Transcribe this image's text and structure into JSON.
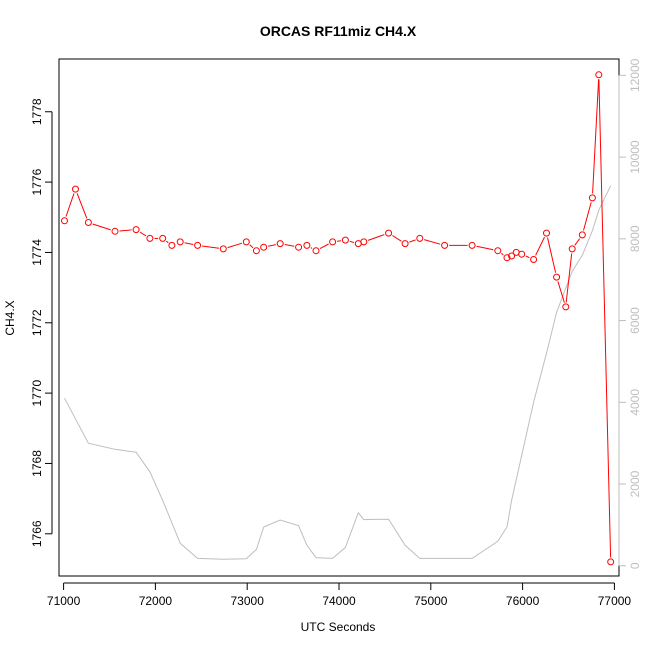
{
  "chart_data": {
    "type": "line",
    "title": "ORCAS RF11miz CH4.X",
    "xlabel": "UTC Seconds",
    "ylabel": "CH4.X",
    "xlim": [
      70950,
      77050
    ],
    "ylim": [
      1764.8,
      1779.5
    ],
    "y2lim": [
      -250,
      12400
    ],
    "grid": false,
    "legend": "none",
    "x_ticks": [
      71000,
      72000,
      73000,
      74000,
      75000,
      76000,
      77000
    ],
    "y_ticks": [
      1766,
      1768,
      1770,
      1772,
      1774,
      1776,
      1778
    ],
    "y2_ticks": [
      0,
      2000,
      4000,
      6000,
      8000,
      10000,
      12000
    ],
    "colors": {
      "ch4": "#ff0000",
      "altitude": "#bebebe",
      "axis": "#000000",
      "right_axis": "#bebebe"
    },
    "series": [
      {
        "axis": "left",
        "style": "points-and-lines",
        "x": [
          71010,
          71130,
          71270,
          71560,
          71790,
          71940,
          72080,
          72180,
          72270,
          72460,
          72740,
          72990,
          73100,
          73180,
          73360,
          73560,
          73650,
          73750,
          73930,
          74070,
          74210,
          74270,
          74540,
          74720,
          74880,
          75150,
          75450,
          75730,
          75830,
          75880,
          75930,
          75990,
          76120,
          76260,
          76370,
          76470,
          76540,
          76650,
          76760,
          76830,
          76960
        ],
        "y": [
          1774.9,
          1775.8,
          1774.85,
          1774.6,
          1774.65,
          1774.4,
          1774.4,
          1774.2,
          1774.3,
          1774.2,
          1774.1,
          1774.3,
          1774.05,
          1774.15,
          1774.25,
          1774.15,
          1774.2,
          1774.05,
          1774.3,
          1774.35,
          1774.25,
          1774.3,
          1774.55,
          1774.25,
          1774.4,
          1774.2,
          1774.2,
          1774.05,
          1773.85,
          1773.9,
          1774.0,
          1773.95,
          1773.8,
          1774.55,
          1773.3,
          1772.45,
          1774.1,
          1774.5,
          1775.55,
          1779.05,
          1765.2
        ]
      },
      {
        "axis": "right",
        "style": "line",
        "x": [
          71010,
          71270,
          71560,
          71790,
          71940,
          72080,
          72270,
          72460,
          72740,
          72990,
          73100,
          73180,
          73360,
          73560,
          73650,
          73750,
          73930,
          74070,
          74210,
          74270,
          74540,
          74720,
          74880,
          75150,
          75450,
          75730,
          75830,
          75880,
          75990,
          76120,
          76260,
          76370,
          76470,
          76540,
          76650,
          76760,
          76830,
          76960
        ],
        "y": [
          4100,
          3000,
          2850,
          2780,
          2300,
          1600,
          550,
          180,
          160,
          170,
          400,
          950,
          1120,
          980,
          500,
          200,
          180,
          450,
          1300,
          1130,
          1140,
          500,
          180,
          180,
          180,
          600,
          950,
          1600,
          2700,
          4000,
          5200,
          6200,
          6800,
          7200,
          7600,
          8200,
          8700,
          9300
        ]
      }
    ]
  }
}
